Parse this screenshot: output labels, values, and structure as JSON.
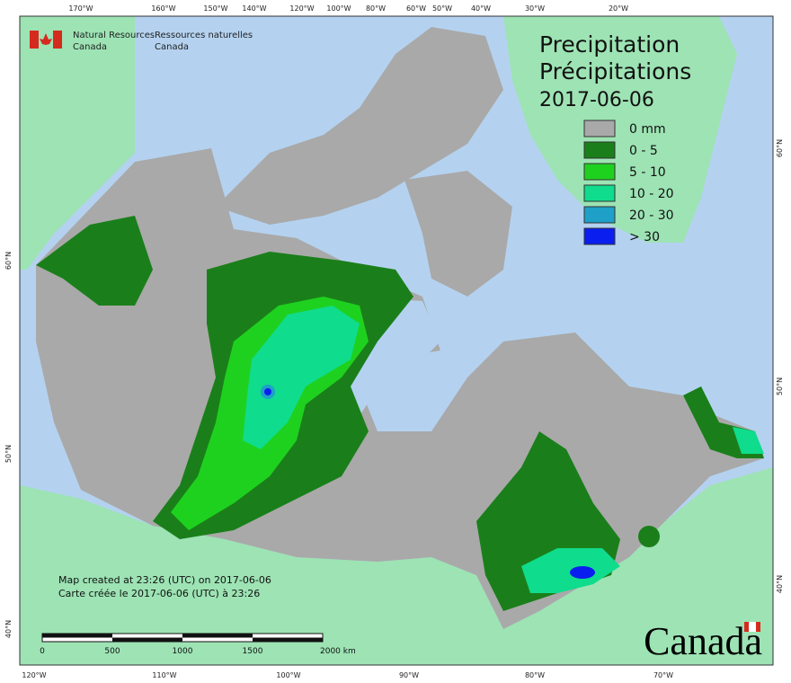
{
  "header": {
    "org_en_1": "Natural Resources",
    "org_en_2": "Canada",
    "org_fr_1": "Ressources naturelles",
    "org_fr_2": "Canada"
  },
  "title": {
    "en": "Precipitation",
    "fr": "Précipitations",
    "date": "2017-06-06"
  },
  "legend": [
    {
      "label": "0 mm",
      "color": "#a9a9a9"
    },
    {
      "label": "0 - 5",
      "color": "#1a7f1a"
    },
    {
      "label": "5 - 10",
      "color": "#1fd11f"
    },
    {
      "label": "10 - 20",
      "color": "#0fdc8c"
    },
    {
      "label": "20 - 30",
      "color": "#1ea0c8"
    },
    {
      "label": "> 30",
      "color": "#0a1ef0"
    }
  ],
  "footer": {
    "created_en": "Map created at 23:26 (UTC) on 2017-06-06",
    "created_fr": "Carte créée le 2017-06-06 (UTC) à 23:26"
  },
  "scale_bar": {
    "labels": [
      "0",
      "500",
      "1000",
      "1500",
      "2000 km"
    ]
  },
  "graticule": {
    "top": [
      "170°W",
      "160°W",
      "150°W",
      "140°W",
      "120°W",
      "100°W",
      "80°W",
      "60°W",
      "50°W",
      "40°W",
      "30°W",
      "20°W"
    ],
    "bottom": [
      "120°W",
      "110°W",
      "100°W",
      "90°W",
      "80°W",
      "70°W"
    ],
    "left": [
      "60°N",
      "50°N",
      "40°N"
    ],
    "right": [
      "60°N",
      "50°N",
      "40°N"
    ]
  },
  "wordmark": "Canada"
}
